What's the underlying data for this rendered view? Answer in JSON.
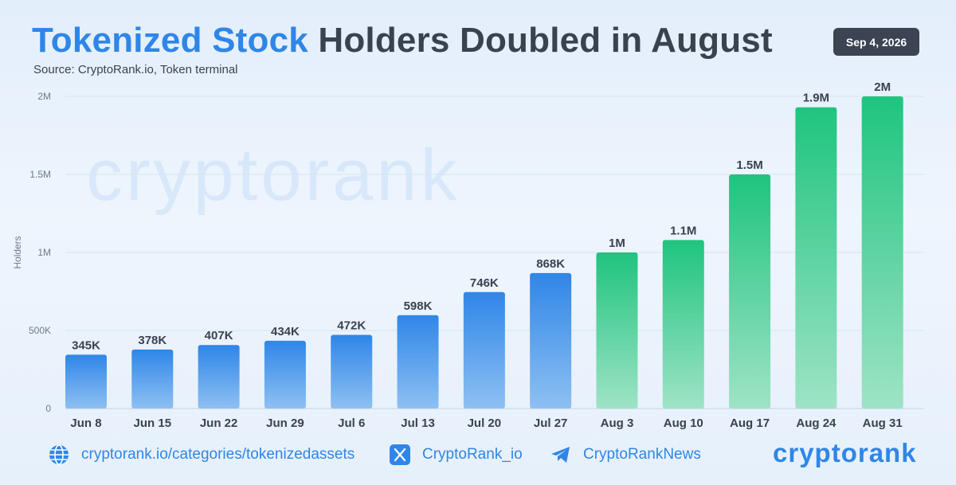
{
  "header": {
    "title_accent": "Tokenized Stock",
    "title_rest": "Holders Doubled in August",
    "source": "Source: CryptoRank.io, Token terminal",
    "date": "Sep 4, 2026"
  },
  "watermark": "cryptorank",
  "colors": {
    "blue_bar": "#2f86e8",
    "green_bar": "#22c787",
    "accent": "#2f86e8",
    "dark": "#3a4250"
  },
  "chart_data": {
    "type": "bar",
    "categories": [
      "Jun 8",
      "Jun 15",
      "Jun 22",
      "Jun 29",
      "Jul 6",
      "Jul 13",
      "Jul 20",
      "Jul 27",
      "Aug 3",
      "Aug 10",
      "Aug 17",
      "Aug 24",
      "Aug 31"
    ],
    "values": [
      345000,
      378000,
      407000,
      434000,
      472000,
      598000,
      746000,
      868000,
      1000000,
      1080000,
      1500000,
      1930000,
      2000000
    ],
    "data_labels": [
      "345K",
      "378K",
      "407K",
      "434K",
      "472K",
      "598K",
      "746K",
      "868K",
      "1M",
      "1.1M",
      "1.5M",
      "1.9M",
      "2M"
    ],
    "bar_colors": [
      "blue",
      "blue",
      "blue",
      "blue",
      "blue",
      "blue",
      "blue",
      "blue",
      "green",
      "green",
      "green",
      "green",
      "green"
    ],
    "ylabel": "Holders",
    "ylim": [
      0,
      2000000
    ],
    "yticks": [
      0,
      500000,
      1000000,
      1500000,
      2000000
    ],
    "ytick_labels": [
      "0",
      "500K",
      "1M",
      "1.5M",
      "2M"
    ],
    "grid": true
  },
  "footer": {
    "website": "cryptorank.io/categories/tokenizedassets",
    "x_handle": "CryptoRank_io",
    "telegram": "CryptoRankNews",
    "brand": "cryptorank"
  }
}
